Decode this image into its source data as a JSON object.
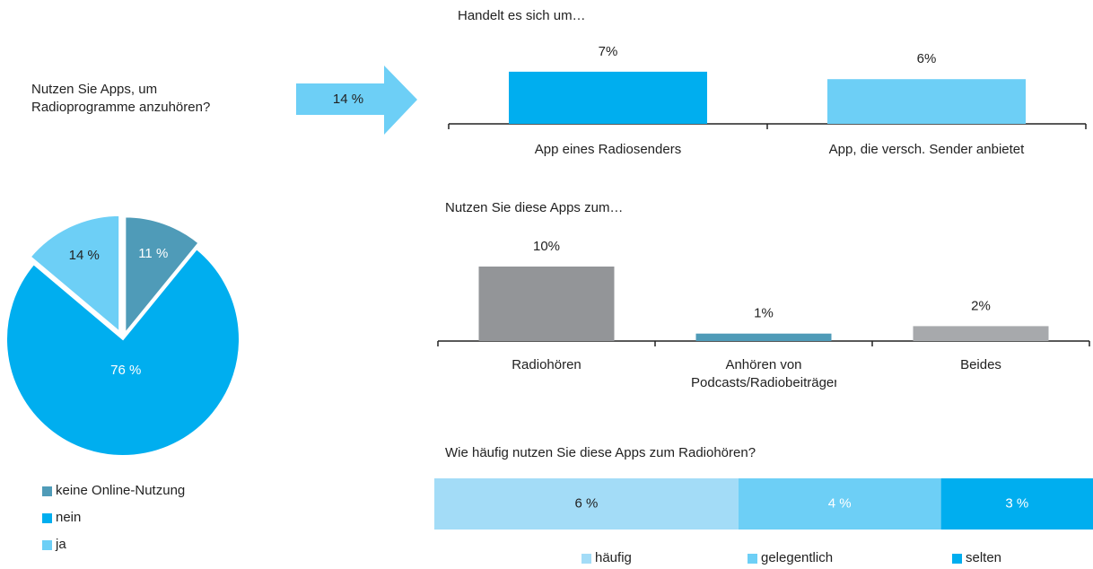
{
  "chart_data": [
    {
      "type": "pie",
      "title": "Nutzen Sie Apps, um Radioprogramme anzuhören?",
      "categories": [
        "keine Online-Nutzung",
        "nein",
        "ja"
      ],
      "values": [
        11,
        76,
        14
      ],
      "value_labels": [
        "11 %",
        "76 %",
        "14 %"
      ],
      "colors": [
        "#4f9bb8",
        "#00aeef",
        "#6dcff6"
      ],
      "label_colors": [
        "#ffffff",
        "#ffffff",
        "#222222"
      ],
      "callout": {
        "value": 14,
        "label": "14 %"
      }
    },
    {
      "type": "bar",
      "title": "Handelt es sich um…",
      "categories": [
        "App eines Radiosenders",
        "App, die versch. Sender anbietet"
      ],
      "values": [
        7,
        6
      ],
      "value_labels": [
        "7%",
        "6%"
      ],
      "colors": [
        "#00aeef",
        "#6dcff6"
      ]
    },
    {
      "type": "bar",
      "title": "Nutzen Sie diese Apps zum…",
      "categories": [
        "Radiohören",
        "Anhören von Podcasts/Radiobeiträgen",
        "Beides"
      ],
      "values": [
        10,
        1,
        2
      ],
      "value_labels": [
        "10%",
        "1%",
        "2%"
      ],
      "colors": [
        "#939598",
        "#4f9bb8",
        "#a7a9ac"
      ]
    },
    {
      "type": "stacked_bar",
      "orientation": "horizontal",
      "title": "Wie häufig nutzen Sie diese Apps zum Radiohören?",
      "series": [
        {
          "name": "häufig",
          "color": "#a3dcf7",
          "values": [
            6
          ],
          "value_labels": [
            "6 %"
          ]
        },
        {
          "name": "gelegentlich",
          "color": "#6dcff6",
          "values": [
            4
          ],
          "value_labels": [
            "4 %"
          ]
        },
        {
          "name": "selten",
          "color": "#00aeef",
          "values": [
            3
          ],
          "value_labels": [
            "3 %"
          ]
        }
      ]
    }
  ]
}
